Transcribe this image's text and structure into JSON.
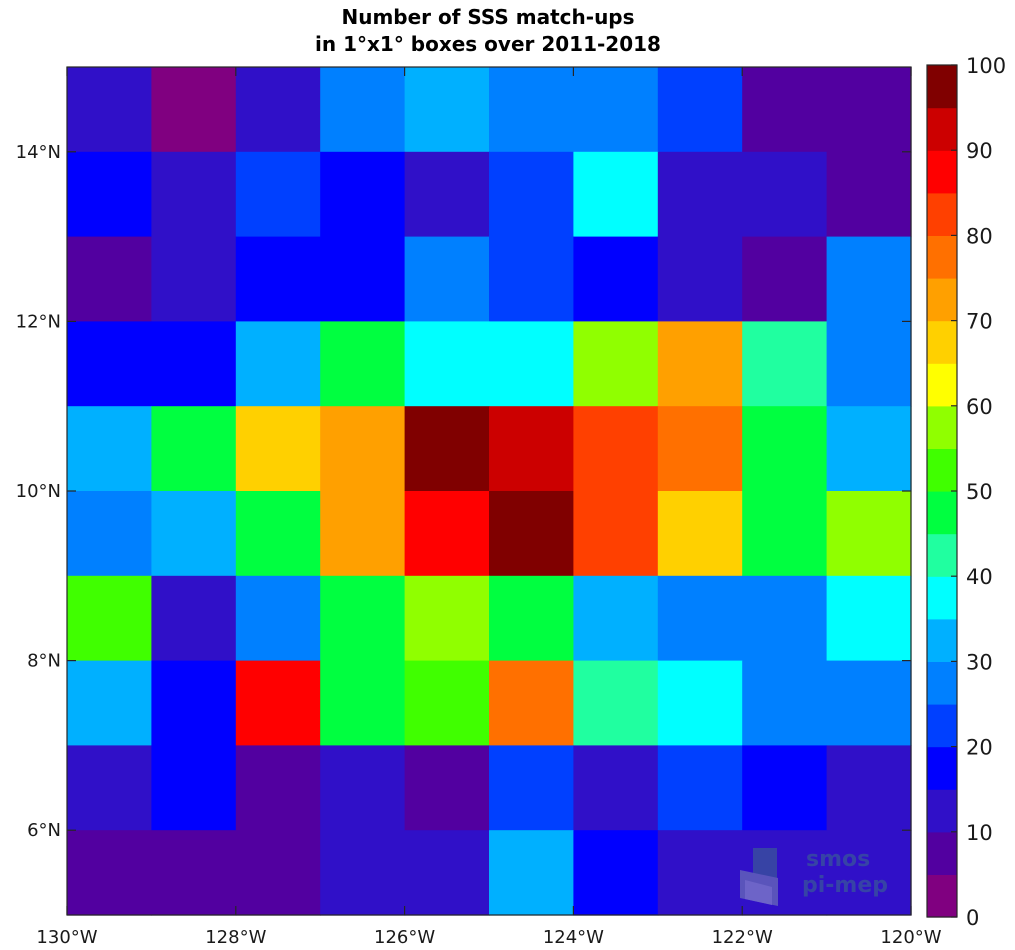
{
  "chart_data": {
    "type": "heatmap",
    "title_lines": [
      "Number of SSS match-ups",
      "in 1°x1° boxes over 2011-2018"
    ],
    "x_edges": [
      -130,
      -129,
      -128,
      -127,
      -126,
      -125,
      -124,
      -123,
      -122,
      -121,
      -120
    ],
    "y_edges": [
      5,
      6,
      7,
      8,
      9,
      10,
      11,
      12,
      13,
      14,
      15
    ],
    "xlim": [
      -130,
      -120
    ],
    "ylim": [
      5,
      15
    ],
    "x_tick_values": [
      -130,
      -128,
      -126,
      -124,
      -122,
      -120
    ],
    "x_tick_labels": [
      "130°W",
      "128°W",
      "126°W",
      "124°W",
      "122°W",
      "120°W"
    ],
    "y_tick_values": [
      6,
      8,
      10,
      12,
      14
    ],
    "y_tick_labels": [
      "6°N",
      "8°N",
      "10°N",
      "12°N",
      "14°N"
    ],
    "values_rows_north_to_south": [
      [
        12,
        3,
        12,
        27,
        33,
        27,
        27,
        22,
        8,
        8
      ],
      [
        18,
        12,
        22,
        18,
        12,
        22,
        37,
        12,
        12,
        8
      ],
      [
        8,
        12,
        18,
        18,
        27,
        22,
        18,
        12,
        8,
        27
      ],
      [
        18,
        18,
        32,
        48,
        38,
        38,
        57,
        73,
        43,
        27
      ],
      [
        32,
        48,
        68,
        73,
        98,
        93,
        82,
        78,
        48,
        32
      ],
      [
        27,
        32,
        48,
        73,
        88,
        98,
        82,
        68,
        48,
        57
      ],
      [
        52,
        12,
        27,
        48,
        57,
        48,
        32,
        27,
        27,
        37
      ],
      [
        32,
        18,
        88,
        48,
        52,
        78,
        43,
        37,
        27,
        27
      ],
      [
        12,
        18,
        8,
        12,
        8,
        22,
        12,
        22,
        18,
        12
      ],
      [
        8,
        8,
        8,
        12,
        12,
        32,
        18,
        12,
        12,
        12
      ]
    ],
    "colorbar": {
      "min": 0,
      "max": 100,
      "step": 5,
      "tick_labels": [
        "0",
        "10",
        "20",
        "30",
        "40",
        "50",
        "60",
        "70",
        "80",
        "90",
        "100"
      ],
      "colors": [
        "#800080",
        "#5200a0",
        "#3010c8",
        "#0000ff",
        "#0040ff",
        "#0080ff",
        "#00b0ff",
        "#00ffff",
        "#20ffa0",
        "#00ff40",
        "#40ff00",
        "#90ff00",
        "#ffff00",
        "#ffd000",
        "#ffa000",
        "#ff7000",
        "#ff4000",
        "#ff0000",
        "#cc0000",
        "#800000"
      ]
    },
    "grid": false
  },
  "watermark": {
    "line1": "smos",
    "line2": "pi-mep"
  }
}
